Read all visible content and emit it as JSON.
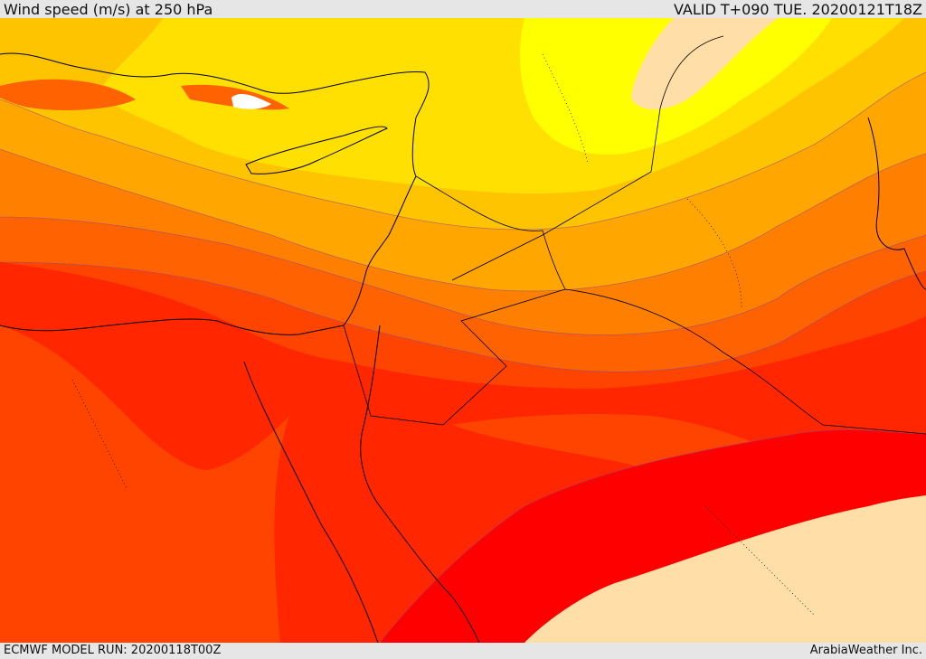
{
  "header": {
    "title": "Wind speed (m/s) at 250 hPa",
    "valid": "VALID T+090 TUE. 20200121T18Z"
  },
  "footer": {
    "model_run": "ECMWF MODEL RUN: 20200118T00Z",
    "credit": "ArabiaWeather Inc."
  },
  "colors": {
    "band_lt20": "#ffffff",
    "band_25": "#ffff00",
    "band_30": "#ffe000",
    "band_35": "#ffc400",
    "band_40": "#ffa600",
    "band_45": "#ff8000",
    "band_50": "#ff6200",
    "band_55": "#ff4400",
    "band_60": "#ff2600",
    "band_65": "#ff0000",
    "band_peak": "#ffdea8",
    "coast": "#000000"
  }
}
